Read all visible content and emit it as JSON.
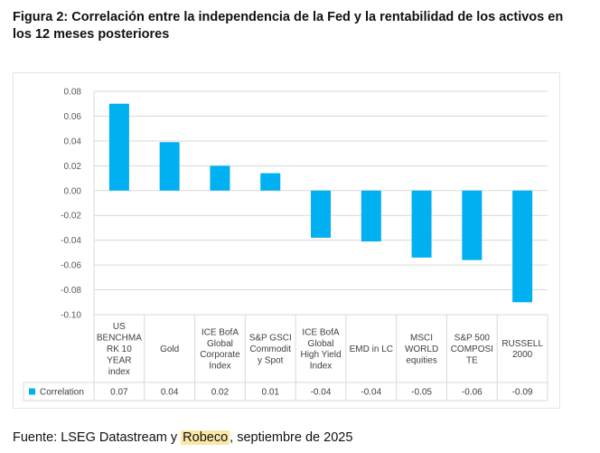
{
  "title": "Figura 2: Correlación entre la independencia de la Fed y la rentabilidad de los activos en los 12 meses posteriores",
  "source": {
    "prefix": "Fuente: LSEG Datastream y ",
    "highlight": "Robeco",
    "suffix": ", septiembre de 2025"
  },
  "colors": {
    "bar": "#00B0F0",
    "grid": "#d9d9d9",
    "axis": "#bfbfbf"
  },
  "chart_data": {
    "type": "bar",
    "title": "",
    "xlabel": "",
    "ylabel": "",
    "ylim": [
      -0.1,
      0.08
    ],
    "yticks": [
      "0.08",
      "0.06",
      "0.04",
      "0.02",
      "0.00",
      "-0.02",
      "-0.04",
      "-0.06",
      "-0.08",
      "-0.10"
    ],
    "categories": [
      [
        "US",
        "BENCHMA",
        "RK 10",
        "YEAR",
        "index"
      ],
      [
        "Gold"
      ],
      [
        "ICE BofA",
        "Global",
        "Corporate",
        "Index"
      ],
      [
        "S&P GSCI",
        "Commodit",
        "y Spot"
      ],
      [
        "ICE BofA",
        "Global",
        "High Yield",
        "Index"
      ],
      [
        "EMD in LC"
      ],
      [
        "MSCI",
        "WORLD",
        "equities"
      ],
      [
        "S&P 500",
        "COMPOSI",
        "TE"
      ],
      [
        "RUSSELL",
        "2000"
      ]
    ],
    "series": [
      {
        "name": "Correlation",
        "values": [
          0.07,
          0.039,
          0.02,
          0.014,
          -0.038,
          -0.041,
          -0.054,
          -0.056,
          -0.09
        ],
        "labels": [
          "0.07",
          "0.04",
          "0.02",
          "0.01",
          "-0.04",
          "-0.04",
          "-0.05",
          "-0.06",
          "-0.09"
        ]
      }
    ],
    "legend": "data-table"
  }
}
